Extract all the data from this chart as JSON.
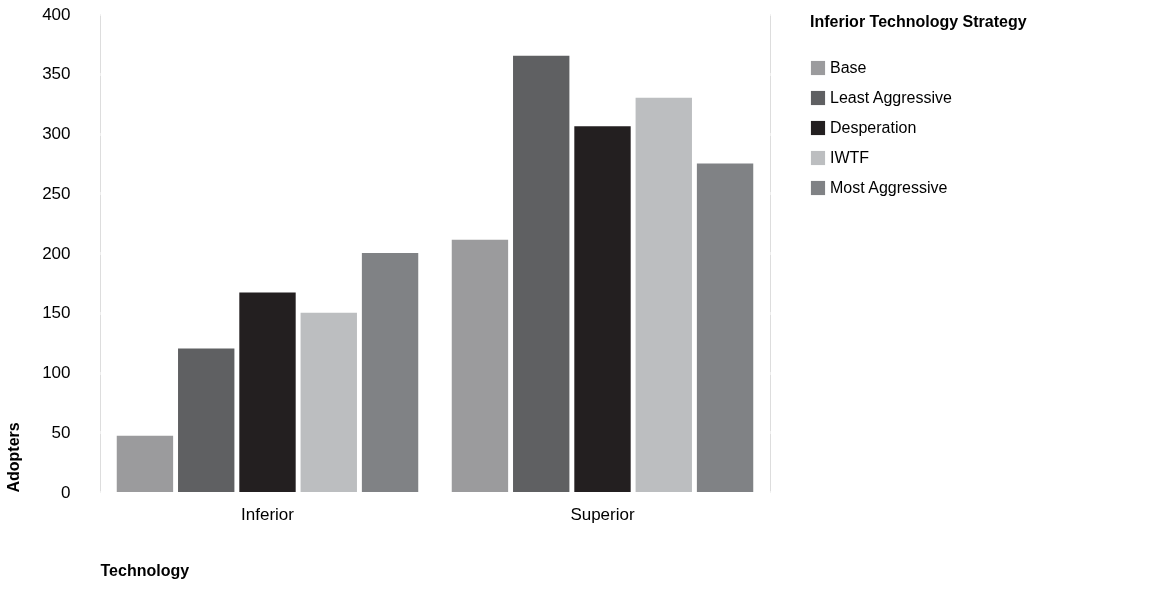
{
  "chart_data": {
    "type": "bar",
    "xlabel": "Technology",
    "ylabel": "Adopters",
    "legend_title": "Inferior Technology Strategy",
    "categories": [
      "Inferior",
      "Superior"
    ],
    "series": [
      {
        "name": "Base",
        "color": "#9b9b9d",
        "values": [
          47,
          211
        ]
      },
      {
        "name": "Least Aggressive",
        "color": "#5f6062",
        "values": [
          120,
          365
        ]
      },
      {
        "name": "Desperation",
        "color": "#231f20",
        "values": [
          167,
          306
        ]
      },
      {
        "name": "IWTF",
        "color": "#bcbec0",
        "values": [
          150,
          330
        ]
      },
      {
        "name": "Most Aggressive",
        "color": "#808285",
        "values": [
          200,
          275
        ]
      }
    ],
    "ylim": [
      0,
      400
    ],
    "yticks": [
      0,
      50,
      100,
      150,
      200,
      250,
      300,
      350,
      400
    ],
    "grid": "y",
    "legend": "top right"
  }
}
